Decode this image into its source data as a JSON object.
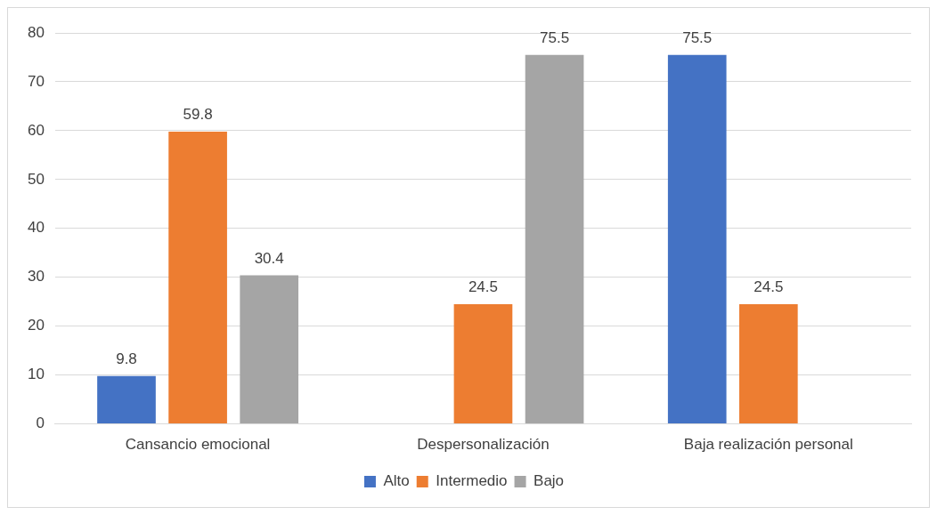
{
  "chart_data": {
    "type": "bar",
    "categories": [
      "Cansancio emocional",
      "Despersonalización",
      "Baja realización personal"
    ],
    "series": [
      {
        "name": "Alto",
        "color": "#4472c4",
        "values": [
          9.8,
          null,
          75.5
        ]
      },
      {
        "name": "Intermedio",
        "color": "#ed7d31",
        "values": [
          59.8,
          24.5,
          24.5
        ]
      },
      {
        "name": "Bajo",
        "color": "#a5a5a5",
        "values": [
          30.4,
          75.5,
          null
        ]
      }
    ],
    "ylim": [
      0,
      80
    ],
    "yticks": [
      0,
      10,
      20,
      30,
      40,
      50,
      60,
      70,
      80
    ],
    "grid": "y",
    "legend": "bottom",
    "data_labels": true
  }
}
